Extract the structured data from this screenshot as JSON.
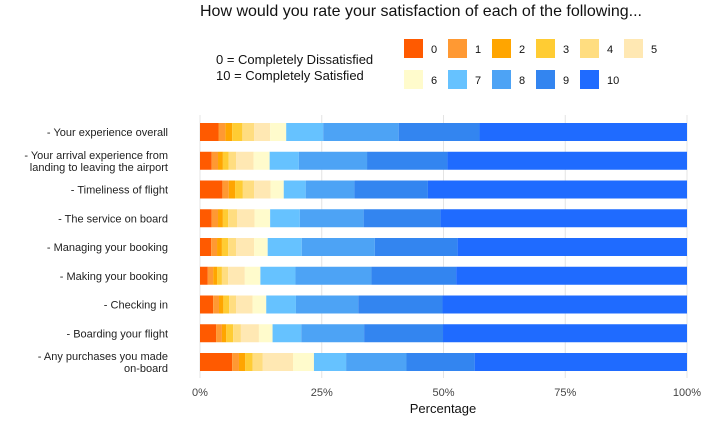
{
  "chart_data": {
    "type": "bar",
    "orientation": "horizontal",
    "stacked": "percent",
    "title": "How would you rate your satisfaction of each of the following...",
    "scale_note": [
      "0 = Completely Dissatisfied",
      "10 = Completely Satisfied"
    ],
    "xlabel": "Percentage",
    "ylabel": "",
    "xlim": [
      0,
      100
    ],
    "x_ticks": [
      "0%",
      "25%",
      "50%",
      "75%",
      "100%"
    ],
    "grid": true,
    "legend_position": "top-right",
    "categories": [
      "- Your experience overall",
      "- Your arrival experience from landing to leaving the airport",
      "- Timeliness of flight",
      "- The service  on board",
      "- Managing your booking",
      "- Making your booking",
      "- Checking in",
      "- Boarding your flight",
      "- Any purchases you made on-board"
    ],
    "category_lines": [
      [
        "- Your experience overall"
      ],
      [
        "- Your arrival experience from",
        "landing to leaving the airport"
      ],
      [
        "- Timeliness of flight"
      ],
      [
        "- The service  on board"
      ],
      [
        "- Managing your booking"
      ],
      [
        "- Making your booking"
      ],
      [
        "- Checking in"
      ],
      [
        "- Boarding your flight"
      ],
      [
        "- Any purchases you made",
        "on-board"
      ]
    ],
    "series": [
      {
        "name": "0",
        "color": "#ff5a00",
        "values": [
          3.8,
          2.4,
          4.6,
          2.4,
          2.3,
          1.6,
          2.7,
          3.3,
          6.6
        ]
      },
      {
        "name": "1",
        "color": "#ff9933",
        "values": [
          1.4,
          1.3,
          1.3,
          1.3,
          1.2,
          1.1,
          1.2,
          1.2,
          1.4
        ]
      },
      {
        "name": "2",
        "color": "#ffa500",
        "values": [
          1.4,
          1.0,
          1.3,
          1.0,
          1.0,
          0.8,
          0.9,
          0.9,
          1.3
        ]
      },
      {
        "name": "3",
        "color": "#ffcc33",
        "values": [
          2.1,
          1.2,
          1.6,
          1.1,
          1.3,
          1.0,
          1.2,
          1.4,
          1.5
        ]
      },
      {
        "name": "4",
        "color": "#ffdd80",
        "values": [
          2.4,
          1.5,
          2.3,
          1.8,
          1.6,
          1.3,
          1.4,
          1.6,
          2.1
        ]
      },
      {
        "name": "5",
        "color": "#ffe8b3",
        "values": [
          3.3,
          3.6,
          3.4,
          3.6,
          3.7,
          3.4,
          3.4,
          3.7,
          6.2
        ]
      },
      {
        "name": "6",
        "color": "#fffbcc",
        "values": [
          3.3,
          3.3,
          2.7,
          3.2,
          2.8,
          3.2,
          2.8,
          2.8,
          4.3
        ]
      },
      {
        "name": "7",
        "color": "#66c2ff",
        "values": [
          7.6,
          6.0,
          4.5,
          6.1,
          7.0,
          7.2,
          6.1,
          5.9,
          6.6
        ]
      },
      {
        "name": "8",
        "color": "#4da3f5",
        "values": [
          15.5,
          14.0,
          10.0,
          13.1,
          15.0,
          15.6,
          12.8,
          12.9,
          12.4
        ]
      },
      {
        "name": "9",
        "color": "#3385f0",
        "values": [
          16.6,
          16.5,
          15.1,
          15.8,
          17.0,
          17.4,
          17.3,
          16.2,
          14.0
        ]
      },
      {
        "name": "10",
        "color": "#1f6bff",
        "values": [
          42.6,
          49.2,
          53.2,
          50.6,
          47.1,
          47.4,
          50.2,
          50.1,
          43.6
        ]
      }
    ]
  }
}
